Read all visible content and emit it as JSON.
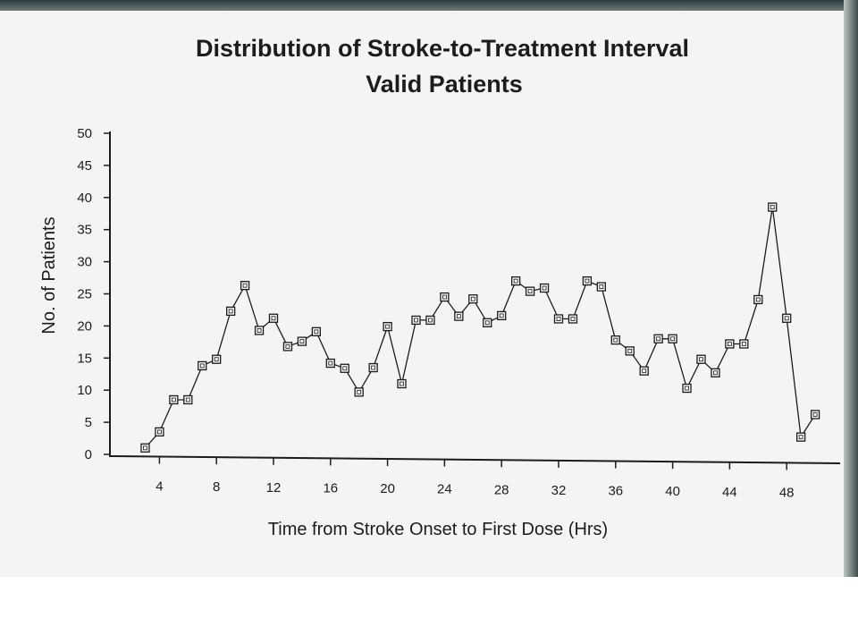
{
  "chart_data": {
    "type": "line",
    "title": "Distribution of Stroke-to-Treatment Interval",
    "subtitle": "Valid Patients",
    "xlabel": "Time from Stroke Onset to First Dose (Hrs)",
    "ylabel": "No. of Patients",
    "xlim": [
      0,
      51
    ],
    "ylim": [
      0,
      50
    ],
    "x_ticks": [
      4,
      8,
      12,
      16,
      20,
      24,
      28,
      32,
      36,
      40,
      44,
      48
    ],
    "y_ticks": [
      0,
      5,
      10,
      15,
      20,
      25,
      30,
      35,
      40,
      45,
      50
    ],
    "grid": false,
    "marker": "square",
    "series": [
      {
        "name": "",
        "x": [
          3,
          4,
          5,
          6,
          7,
          8,
          9,
          10,
          11,
          12,
          13,
          14,
          15,
          16,
          17,
          18,
          19,
          20,
          21,
          22,
          23,
          24,
          25,
          26,
          27,
          28,
          29,
          30,
          31,
          32,
          33,
          34,
          35,
          36,
          37,
          38,
          39,
          40,
          41,
          42,
          43,
          44,
          45,
          46,
          47,
          48,
          49,
          50
        ],
        "values": [
          1,
          3.5,
          8.5,
          8.5,
          13.8,
          14.8,
          22.3,
          26.3,
          19.3,
          21.2,
          16.8,
          17.6,
          19.1,
          14.2,
          13.4,
          9.7,
          13.5,
          19.9,
          11,
          20.9,
          20.9,
          24.5,
          21.5,
          24.2,
          20.5,
          21.6,
          27,
          25.4,
          25.9,
          21.1,
          21.1,
          27,
          26.1,
          17.8,
          16.1,
          13,
          18,
          18,
          10.3,
          14.8,
          12.7,
          17.2,
          17.2,
          24.1,
          38.5,
          21.2,
          2.7,
          6.2
        ]
      }
    ]
  }
}
